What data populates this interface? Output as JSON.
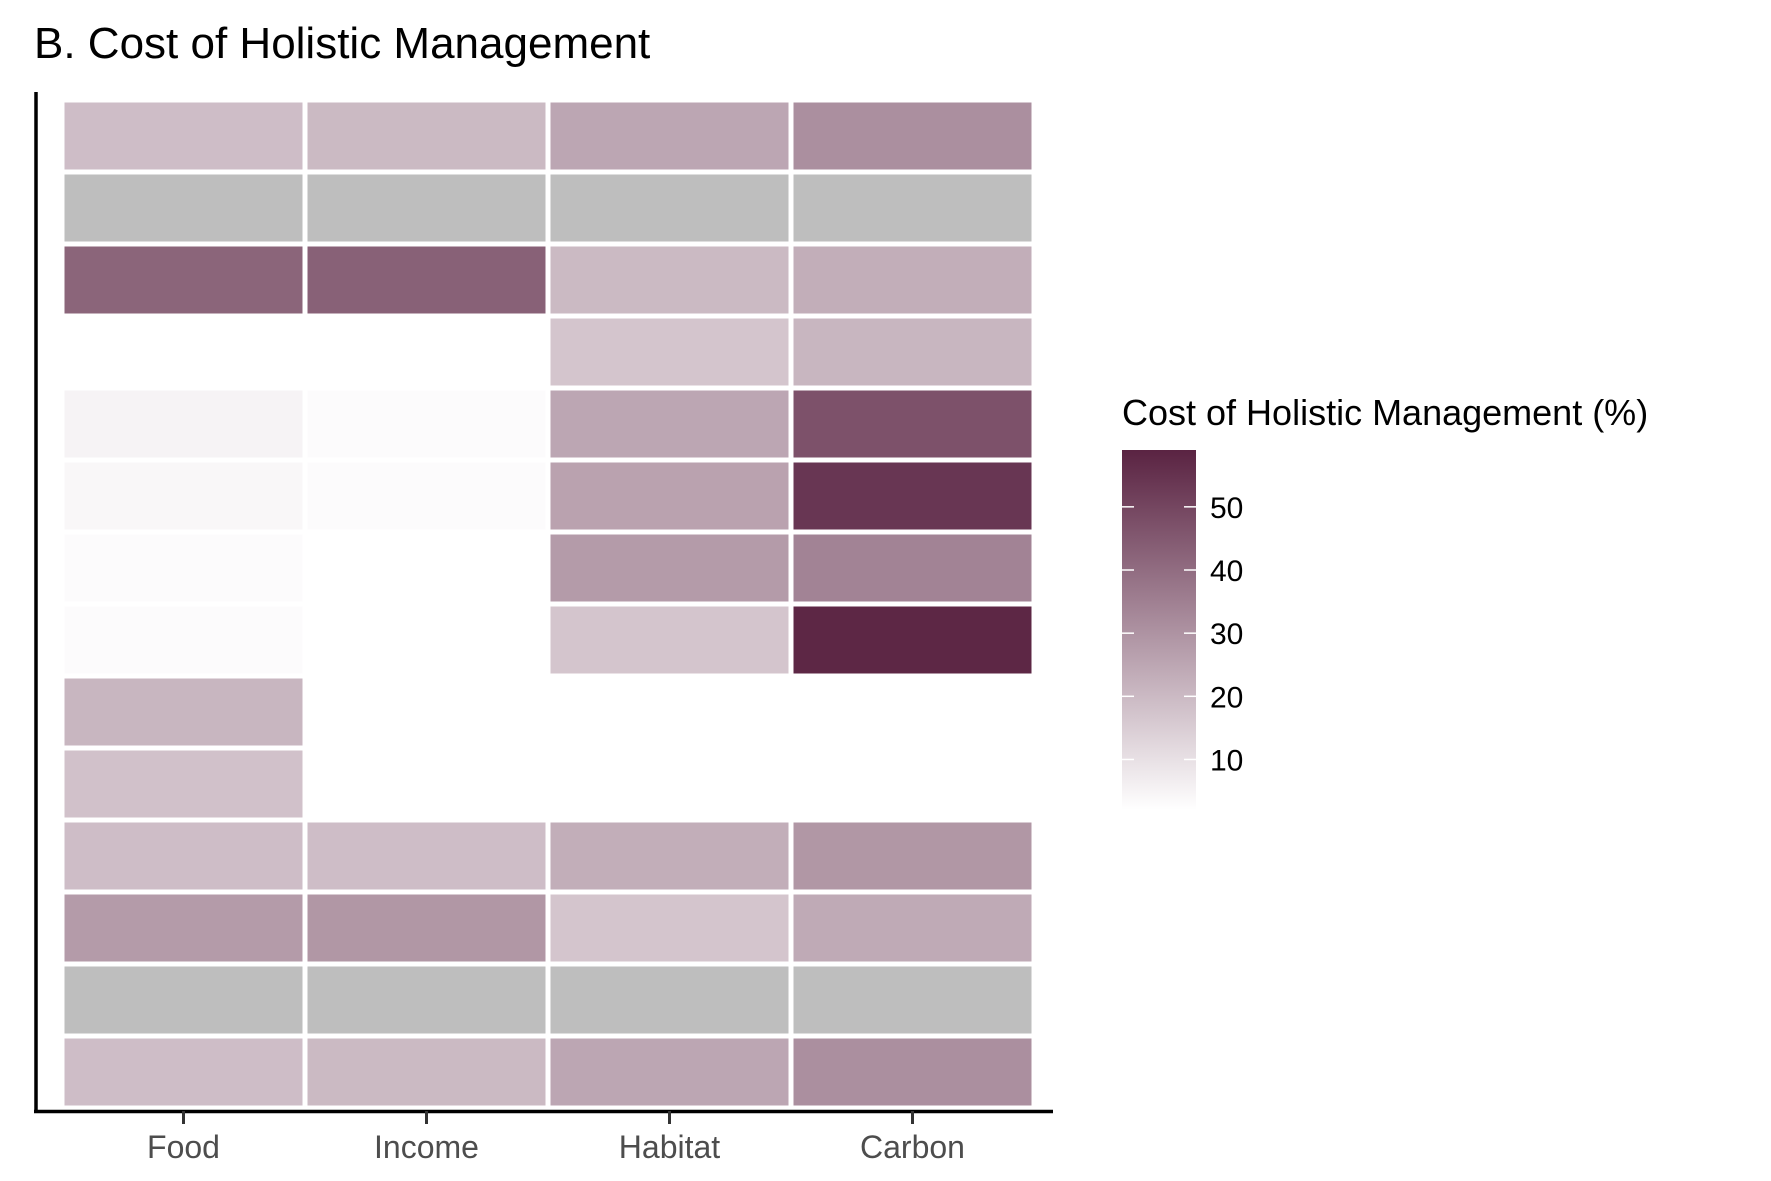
{
  "chart_data": {
    "type": "heatmap",
    "title": "B. Cost of Holistic Management",
    "xlabel": "",
    "ylabel": "",
    "categories": [
      "Food",
      "Income",
      "Habitat",
      "Carbon"
    ],
    "rows": 14,
    "values": [
      [
        19,
        20,
        25,
        31
      ],
      [
        null,
        null,
        null,
        null
      ],
      [
        42,
        43,
        20,
        23
      ],
      [
        0,
        0,
        17,
        21
      ],
      [
        5,
        3,
        25,
        47
      ],
      [
        4,
        3,
        26,
        54
      ],
      [
        3,
        2,
        28,
        34
      ],
      [
        3,
        2,
        17,
        58
      ],
      [
        21,
        2,
        0,
        1
      ],
      [
        18,
        1,
        0,
        1
      ],
      [
        19,
        19,
        23,
        29
      ],
      [
        28,
        29,
        17,
        24
      ],
      [
        null,
        null,
        null,
        null
      ],
      [
        19,
        20,
        25,
        31
      ]
    ],
    "legend": {
      "title": "Cost of Holistic Management (%)",
      "ticks": [
        10,
        20,
        30,
        40,
        50
      ],
      "range": [
        2,
        59
      ],
      "placement": "right"
    },
    "colors": {
      "low": "#ffffff",
      "high": "#5a2342",
      "missing": "#bebebe"
    },
    "grid": false
  }
}
